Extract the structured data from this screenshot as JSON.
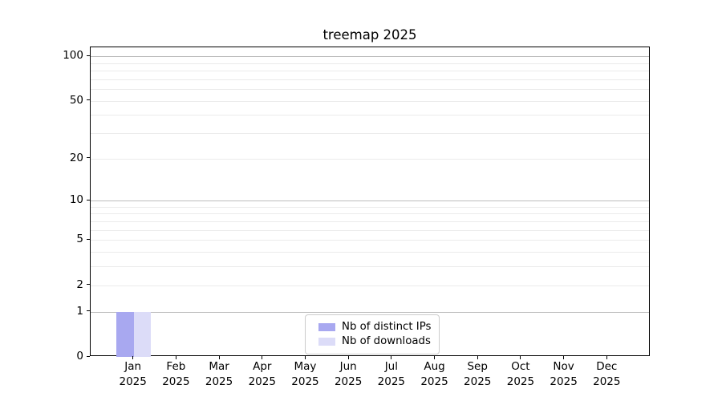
{
  "chart_data": {
    "type": "bar",
    "title": "treemap 2025",
    "xlabel": "",
    "ylabel": "",
    "categories": [
      {
        "month": "Jan",
        "year": "2025"
      },
      {
        "month": "Feb",
        "year": "2025"
      },
      {
        "month": "Mar",
        "year": "2025"
      },
      {
        "month": "Apr",
        "year": "2025"
      },
      {
        "month": "May",
        "year": "2025"
      },
      {
        "month": "Jun",
        "year": "2025"
      },
      {
        "month": "Jul",
        "year": "2025"
      },
      {
        "month": "Aug",
        "year": "2025"
      },
      {
        "month": "Sep",
        "year": "2025"
      },
      {
        "month": "Oct",
        "year": "2025"
      },
      {
        "month": "Nov",
        "year": "2025"
      },
      {
        "month": "Dec",
        "year": "2025"
      }
    ],
    "series": [
      {
        "name": "Nb of distinct IPs",
        "color": "#a8a8f0",
        "values": [
          1,
          0,
          0,
          0,
          0,
          0,
          0,
          0,
          0,
          0,
          0,
          0
        ]
      },
      {
        "name": "Nb of downloads",
        "color": "#dcdcf8",
        "values": [
          1,
          0,
          0,
          0,
          0,
          0,
          0,
          0,
          0,
          0,
          0,
          0
        ]
      }
    ],
    "y_axis": {
      "scale": "log1p",
      "ylim": [
        0,
        114.7
      ],
      "ticks": [
        0,
        1,
        2,
        5,
        10,
        20,
        50,
        100
      ],
      "major_gridlines": [
        1,
        10,
        100
      ],
      "minor_gridlines": [
        2,
        3,
        4,
        5,
        6,
        7,
        8,
        9,
        20,
        30,
        40,
        50,
        60,
        70,
        80,
        90
      ]
    },
    "legend": {
      "position": "lower center",
      "entries": [
        {
          "label": "Nb of distinct IPs",
          "color": "#a8a8f0"
        },
        {
          "label": "Nb of downloads",
          "color": "#dcdcf8"
        }
      ]
    },
    "grid": {
      "major_color": "#bcbcbc",
      "minor_color": "#ebebeb"
    }
  }
}
